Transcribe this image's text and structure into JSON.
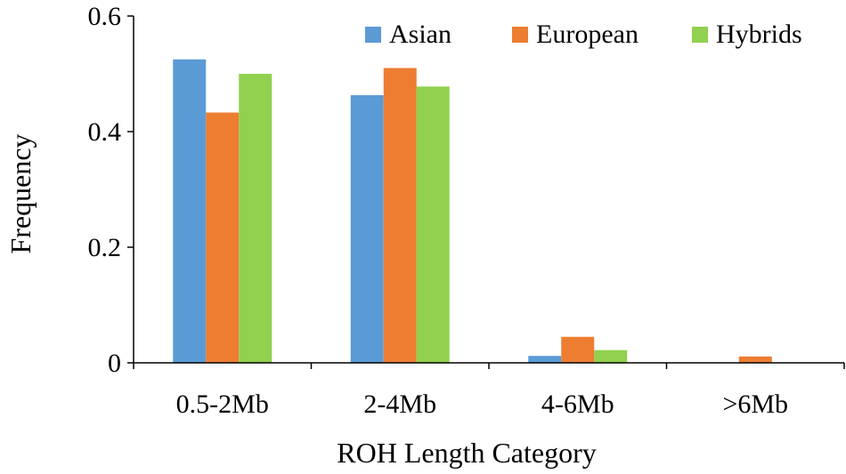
{
  "chart_data": {
    "type": "bar",
    "categories": [
      "0.5-2Mb",
      "2-4Mb",
      "4-6Mb",
      ">6Mb"
    ],
    "series": [
      {
        "name": "Asian",
        "color": "#5B9BD5",
        "values": [
          0.525,
          0.463,
          0.012,
          0.0
        ]
      },
      {
        "name": "European",
        "color": "#ED7D31",
        "values": [
          0.433,
          0.51,
          0.045,
          0.011
        ]
      },
      {
        "name": "Hybrids",
        "color": "#92D050",
        "values": [
          0.5,
          0.478,
          0.022,
          0.0
        ]
      }
    ],
    "xlabel": "ROH Length Category",
    "ylabel": "Frequency",
    "ylim": [
      0,
      0.6
    ],
    "yticks": [
      "0",
      "0.2",
      "0.4",
      "0.6"
    ],
    "grid": false,
    "legend_position": "top-right"
  }
}
